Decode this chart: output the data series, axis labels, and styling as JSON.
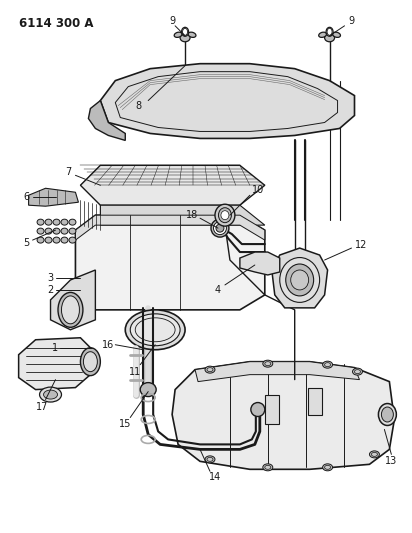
{
  "title": "6114 300 A",
  "bg_color": "#ffffff",
  "line_color": "#1a1a1a",
  "fig_width": 4.12,
  "fig_height": 5.33,
  "dpi": 100,
  "label_fontsize": 7,
  "title_fontsize": 8.5
}
